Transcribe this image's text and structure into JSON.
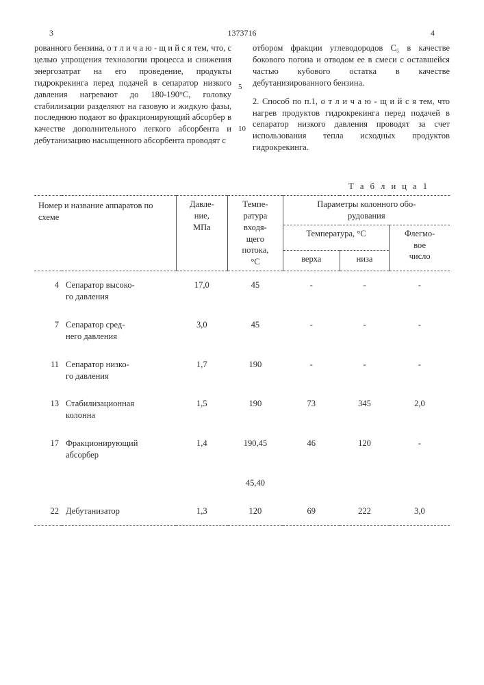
{
  "header": {
    "left_page": "3",
    "doc_no": "1373716",
    "right_page": "4"
  },
  "left_col": {
    "p1": "рованного бензина, о т л и ч а ю - щ и й с я  тем, что, с целью упрощения технологии процесса и снижения энергозатрат на его проведение, продукты гидрокрекинга перед подачей в сепаратор низкого давления нагревают до 180-190°С, головку стабилизации разделяют на газовую и жидкую фазы, последнюю подают во фракционирующий абсорбер в качестве дополнительного легкого абсорбента и дебутанизацию насыщенного абсорбента проводят с"
  },
  "right_col": {
    "p1": "отбором фракции углеводородов С₅ в качестве бокового погона и отводом ее в смеси с оставшейся частью кубового остатка в качестве дебутанизированного бензина.",
    "p2": "2. Способ по п.1, о т л и ч а ю - щ и й с я  тем, что нагрев продуктов гидрокрекинга перед подачей в сепаратор низкого давления проводят за счет использования тепла исходных продуктов гидрокрекинга."
  },
  "line_numbers": {
    "a": "5",
    "b": "10"
  },
  "table": {
    "title": "Т а б л и ц а  1",
    "headers": {
      "h1": "Номер и название аппаратов по схеме",
      "h2": "Давле-\nние,\nМПа",
      "h3": "Темпе-\nратура\nвходя-\nщего\nпотока,\n°С",
      "h4": "Параметры колонного обо-\nрудования",
      "h4a": "Температура, °С",
      "h4a1": "верха",
      "h4a2": "низа",
      "h4b": "Флегмо-\nвое\nчисло"
    },
    "rows": [
      {
        "num": "4",
        "name": "Сепаратор высоко-\nго давления",
        "p": "17,0",
        "t": "45",
        "tv": "-",
        "tn": "-",
        "f": "-"
      },
      {
        "num": "7",
        "name": "Сепаратор сред-\nнего давления",
        "p": "3,0",
        "t": "45",
        "tv": "-",
        "tn": "-",
        "f": "-"
      },
      {
        "num": "11",
        "name": "Сепаратор низко-\nго давления",
        "p": "1,7",
        "t": "190",
        "tv": "-",
        "tn": "-",
        "f": "-"
      },
      {
        "num": "13",
        "name": "Стабилизационная\nколонна",
        "p": "1,5",
        "t": "190",
        "tv": "73",
        "tn": "345",
        "f": "2,0"
      },
      {
        "num": "17",
        "name": "Фракционирующий\nабсорбер",
        "p": "1,4",
        "t": "190,45",
        "tv": "46",
        "tn": "120",
        "f": "-"
      },
      {
        "num": "",
        "name": "",
        "p": "",
        "t": "45,40",
        "tv": "",
        "tn": "",
        "f": ""
      },
      {
        "num": "22",
        "name": "Дебутанизатор",
        "p": "1,3",
        "t": "120",
        "tv": "69",
        "tn": "222",
        "f": "3,0"
      }
    ]
  }
}
